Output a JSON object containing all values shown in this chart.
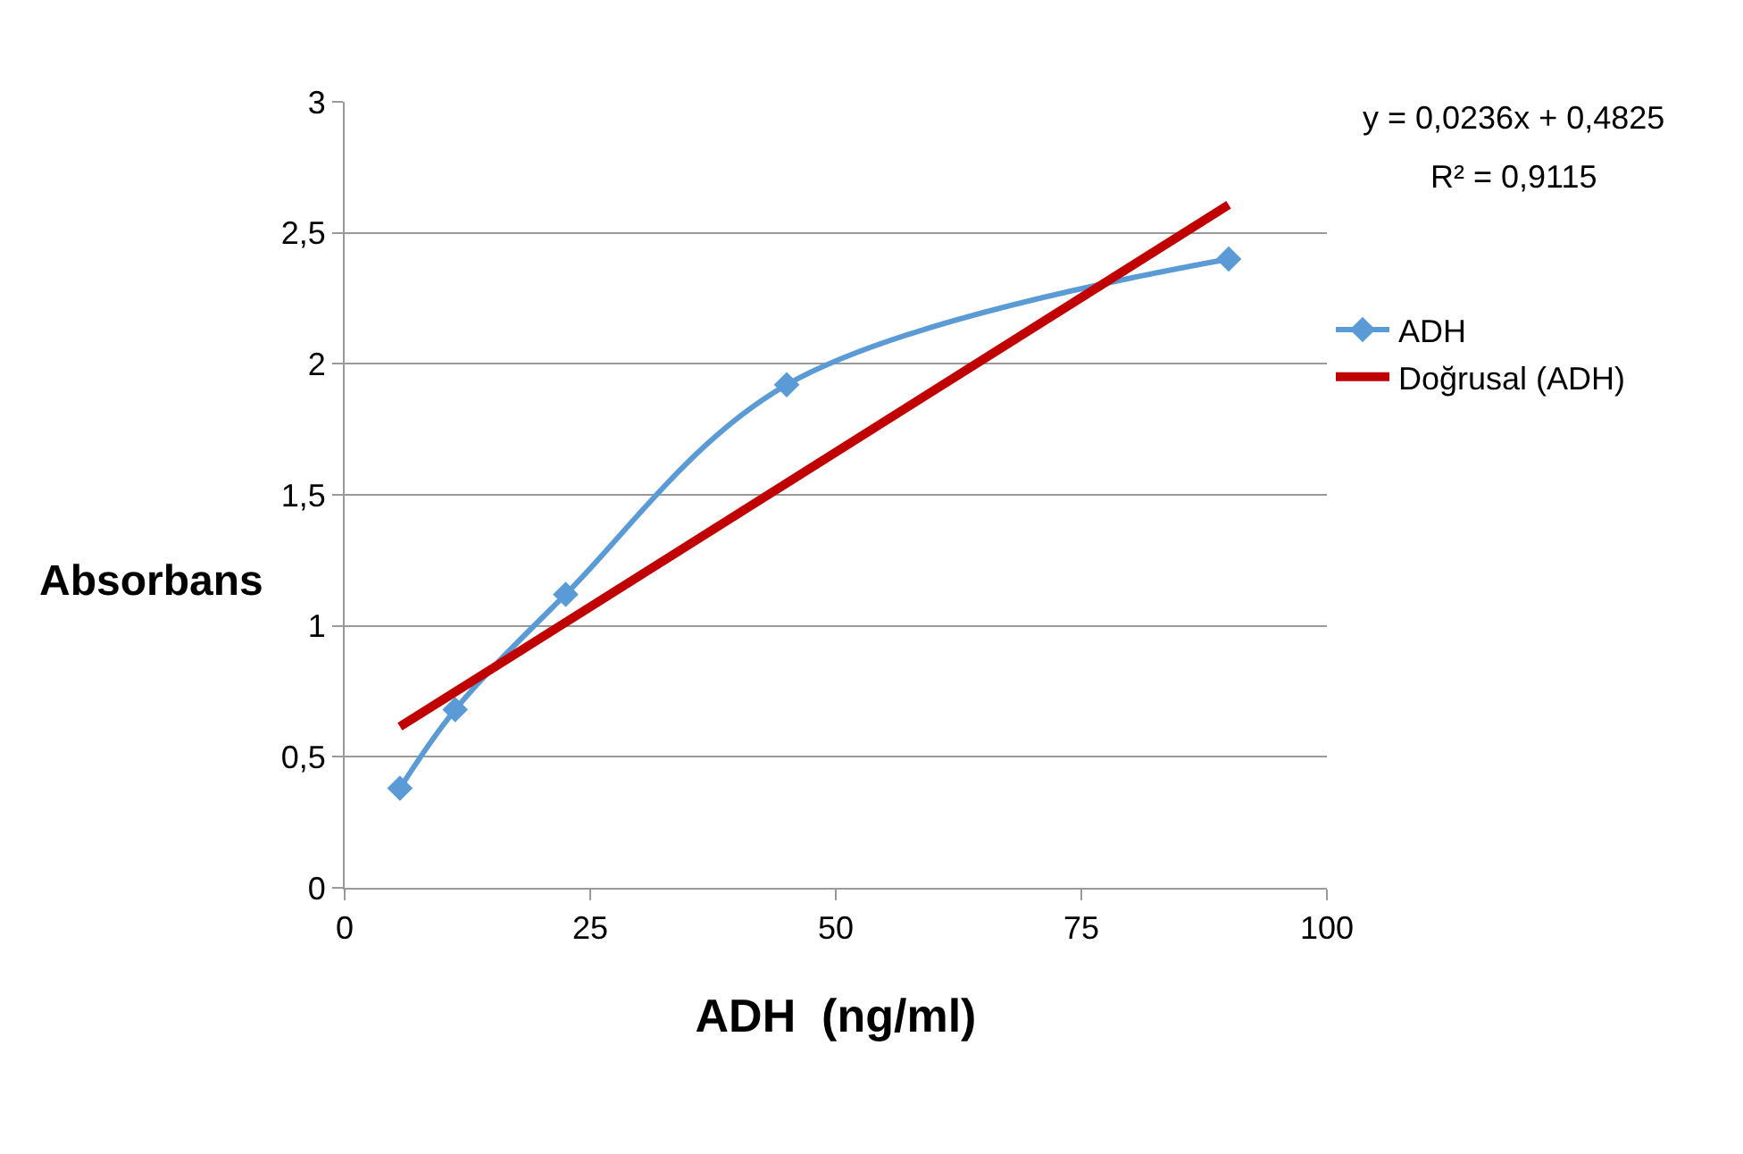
{
  "chart_data": {
    "type": "line",
    "xlabel": "ADH  (ng/ml)",
    "ylabel": "Absorbans",
    "xlim": [
      0,
      100
    ],
    "xticks": [
      0,
      25,
      50,
      75,
      100
    ],
    "ylim": [
      0,
      3
    ],
    "yticks": [
      0,
      {
        "value": 0.5,
        "label": "0,5"
      },
      1,
      {
        "value": 1.5,
        "label": "1,5"
      },
      2,
      {
        "value": 2.5,
        "label": "2,5"
      },
      3
    ],
    "grid": "y",
    "legend": "right",
    "series": [
      {
        "name": "ADH",
        "color": "#5b9bd5",
        "marker": "diamond",
        "x": [
          5.625,
          11.25,
          22.5,
          45,
          90
        ],
        "values": [
          0.38,
          0.68,
          1.12,
          1.92,
          2.4
        ]
      },
      {
        "name": "Doğrusal (ADH)",
        "color": "#c00000",
        "marker": "none",
        "x": [
          5.625,
          90
        ],
        "values": [
          0.615,
          2.607
        ]
      }
    ],
    "annotations": [
      "y = 0,0236x + 0,4825",
      "R² = 0,9115"
    ]
  }
}
